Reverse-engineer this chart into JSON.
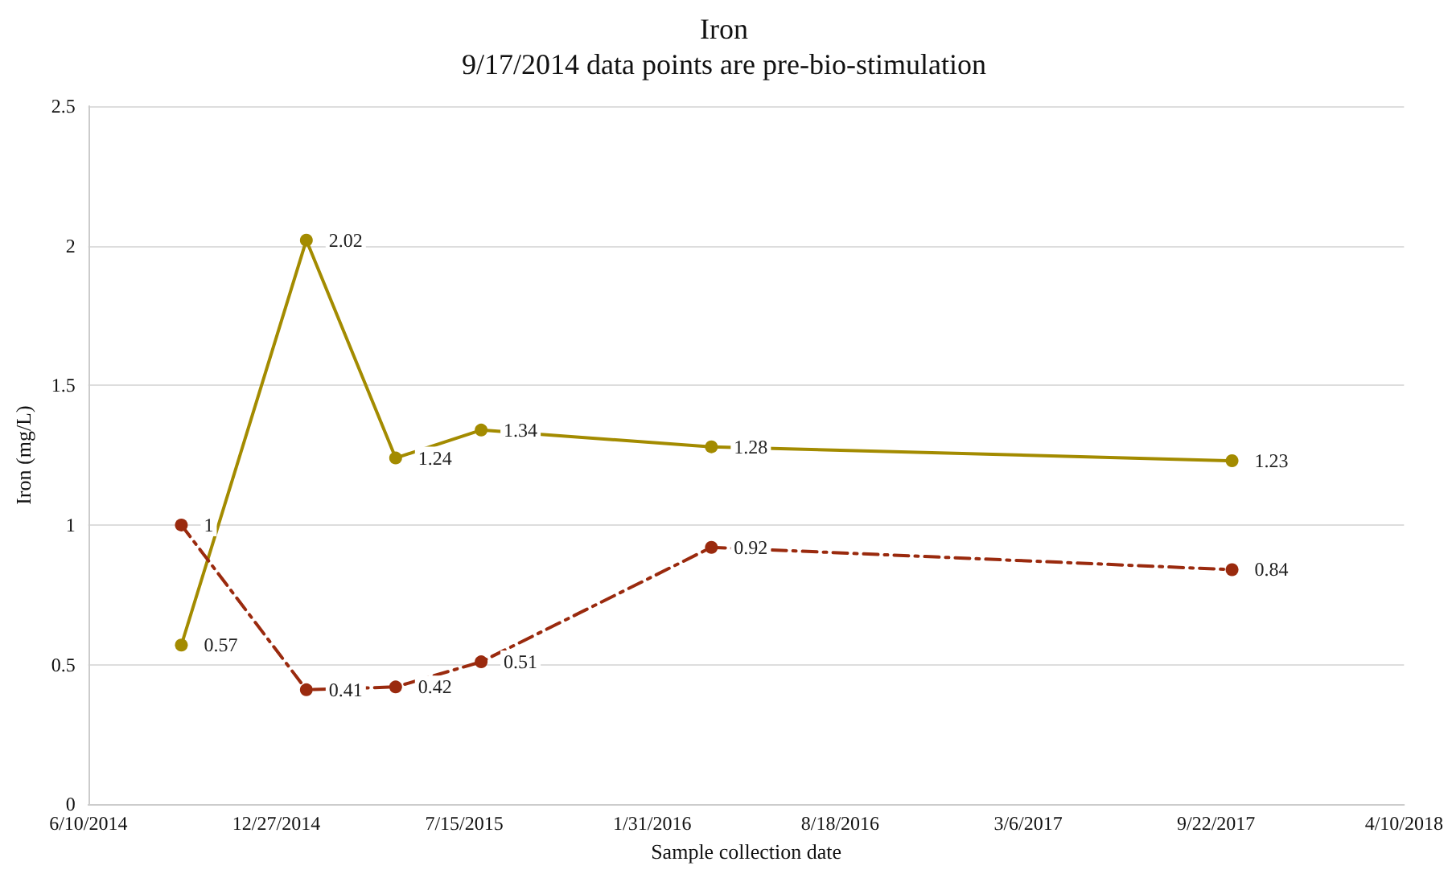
{
  "chart_data": {
    "type": "line",
    "title": "Iron",
    "subtitle": "9/17/2014 data points are pre-bio-stimulation",
    "xlabel": "Sample collection date",
    "ylabel": "Iron (mg/L)",
    "x": [
      "2014-09-17",
      "2015-01-28",
      "2015-05-03",
      "2015-08-02",
      "2016-04-03",
      "2017-10-09"
    ],
    "series": [
      {
        "color": "#a38b00",
        "values": [
          0.57,
          2.02,
          1.24,
          1.34,
          1.28,
          1.23
        ],
        "line_style": "solid"
      },
      {
        "color": "#9a2a0e",
        "values": [
          1,
          0.41,
          0.42,
          0.51,
          0.92,
          0.84
        ],
        "line_style": "dashed"
      }
    ],
    "xlim": [
      "2014-06-10",
      "2018-04-10"
    ],
    "xticks": [
      {
        "value": "2014-06-10",
        "label": "6/10/2014"
      },
      {
        "value": "2014-12-27",
        "label": "12/27/2014"
      },
      {
        "value": "2015-07-15",
        "label": "7/15/2015"
      },
      {
        "value": "2016-01-31",
        "label": "1/31/2016"
      },
      {
        "value": "2016-08-18",
        "label": "8/18/2016"
      },
      {
        "value": "2017-03-06",
        "label": "3/6/2017"
      },
      {
        "value": "2017-09-22",
        "label": "9/22/2017"
      },
      {
        "value": "2018-04-10",
        "label": "4/10/2018"
      }
    ],
    "ylim": [
      0,
      2.5
    ],
    "yticks": [
      0,
      0.5,
      1,
      1.5,
      2,
      2.5
    ],
    "grid": "y",
    "marker": "circle",
    "data_labels": true
  }
}
